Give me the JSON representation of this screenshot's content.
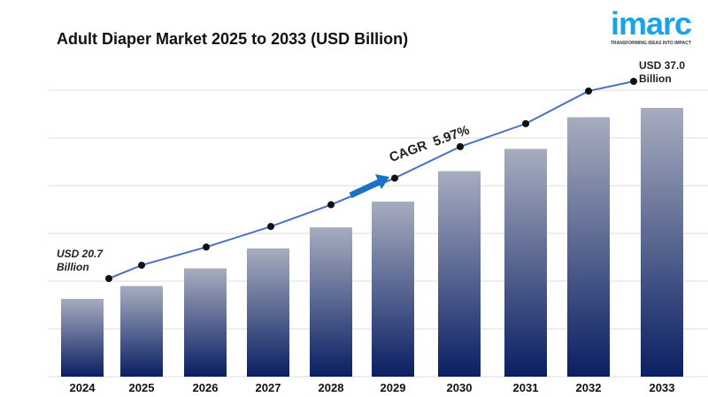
{
  "chart_data": {
    "type": "bar",
    "title": "Adult Diaper Market 2025 to 2033 (USD Billion)",
    "categories": [
      "2024",
      "2025",
      "2026",
      "2027",
      "2028",
      "2029",
      "2030",
      "2031",
      "2032",
      "2033"
    ],
    "values": [
      20.7,
      21.8,
      23.3,
      25.0,
      26.8,
      29.0,
      31.6,
      33.5,
      36.2,
      37.0
    ],
    "overlay": "line with markers",
    "annotations": {
      "start": "USD 20.7 Billion",
      "start_line1": "USD 20.7",
      "start_line2": "Billion",
      "end_line1": "USD 37.0",
      "end_line2": "Billion",
      "cagr": "CAGR  5.97%"
    },
    "grid": true,
    "colors": {
      "bar_top": "#a7adbf",
      "bar_bottom": "#0a1f63",
      "line": "#4a72c4",
      "marker": "#111111",
      "arrow": "#1a73c2"
    }
  },
  "logo": {
    "word": "imarc",
    "tagline": "TRANSFORMING IDEAS INTO IMPACT"
  }
}
